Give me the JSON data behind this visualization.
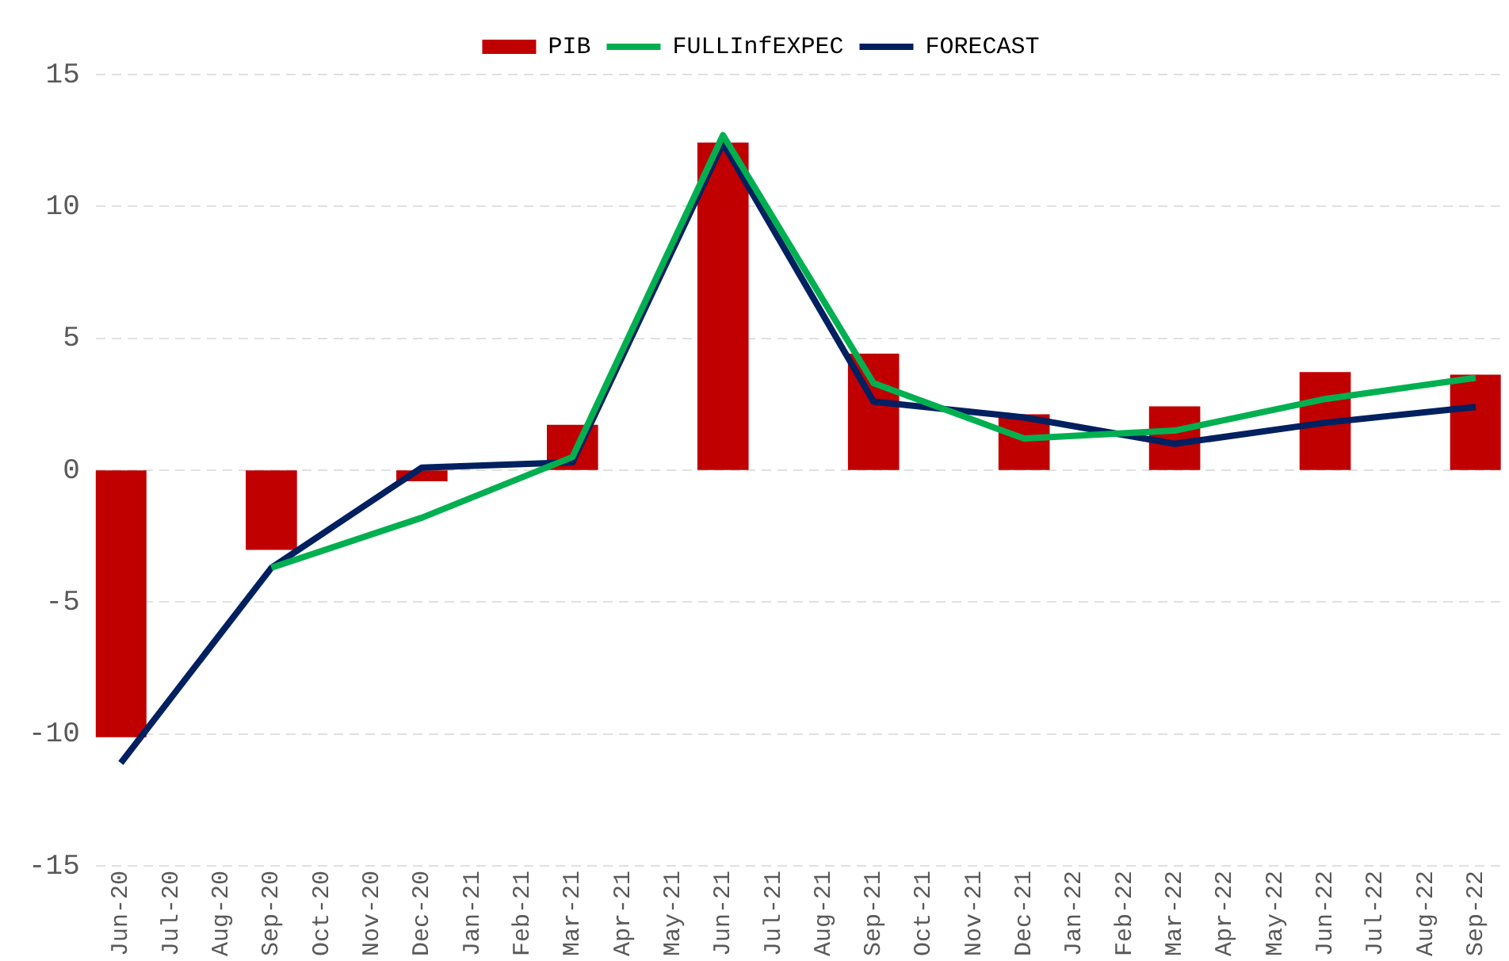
{
  "chart_data": {
    "type": "bar",
    "categories": [
      "Jun-20",
      "Jul-20",
      "Aug-20",
      "Sep-20",
      "Oct-20",
      "Nov-20",
      "Dec-20",
      "Jan-21",
      "Feb-21",
      "Mar-21",
      "Apr-21",
      "May-21",
      "Jun-21",
      "Jul-21",
      "Aug-21",
      "Sep-21",
      "Oct-21",
      "Nov-21",
      "Dec-21",
      "Jan-22",
      "Feb-22",
      "Mar-22",
      "Apr-22",
      "May-22",
      "Jun-22",
      "Jul-22",
      "Aug-22",
      "Sep-22"
    ],
    "series": [
      {
        "name": "PIB",
        "color": "#c00000",
        "values": [
          -10.1,
          null,
          null,
          -3.0,
          null,
          null,
          -0.4,
          null,
          null,
          1.7,
          null,
          null,
          12.4,
          null,
          null,
          4.4,
          null,
          null,
          2.1,
          null,
          null,
          2.4,
          null,
          null,
          3.7,
          null,
          null,
          3.6
        ]
      },
      {
        "name": "FULLInfEXPEC",
        "type": "line",
        "color": "#00b050",
        "values": [
          null,
          null,
          null,
          -3.7,
          null,
          null,
          -1.8,
          null,
          null,
          0.5,
          null,
          null,
          12.7,
          null,
          null,
          3.3,
          null,
          null,
          1.2,
          null,
          null,
          1.5,
          null,
          null,
          2.7,
          null,
          null,
          3.5
        ]
      },
      {
        "name": "FORECAST",
        "type": "line",
        "color": "#002060",
        "values": [
          -11.1,
          null,
          null,
          -3.7,
          null,
          null,
          0.1,
          null,
          null,
          0.3,
          null,
          null,
          12.4,
          null,
          null,
          2.6,
          null,
          null,
          2.0,
          null,
          null,
          1.0,
          null,
          null,
          1.8,
          null,
          null,
          2.4
        ]
      }
    ],
    "ylim": [
      -15,
      15
    ],
    "yticks": [
      -15,
      -10,
      -5,
      0,
      5,
      10,
      15
    ],
    "grid": "y",
    "legend": "top",
    "marker": "none",
    "line_style": "solid"
  }
}
